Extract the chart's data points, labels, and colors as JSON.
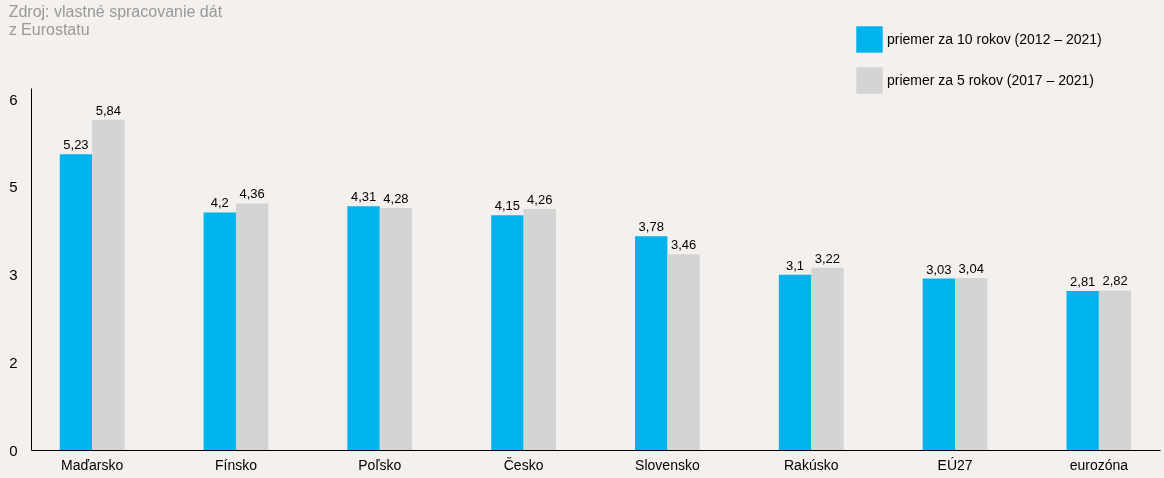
{
  "chart_data": {
    "type": "bar",
    "annotations": [
      "Zdroj: vlastné spracovanie dát\nz Eurostatu"
    ],
    "categories": [
      "Maďarsko",
      "Fínsko",
      "Poľsko",
      "Česko",
      "Slovensko",
      "Rakúsko",
      "EÚ27",
      "eurozóna"
    ],
    "series": [
      {
        "name": "priemer za 10 rokov (2012 – 2021)",
        "color": "#00b3ec",
        "values": [
          5.23,
          4.2,
          4.31,
          4.15,
          3.78,
          3.1,
          3.03,
          2.81
        ]
      },
      {
        "name": "priemer za 5 rokov (2017 – 2021)",
        "color": "#d4d4d4",
        "values": [
          5.84,
          4.36,
          4.28,
          4.26,
          3.46,
          3.22,
          3.04,
          2.82
        ]
      }
    ],
    "ylim": [
      0,
      6.4
    ],
    "yticks": [
      0,
      {
        "value": 1.55,
        "label": "2"
      },
      {
        "value": 3.1,
        "label": "3"
      },
      {
        "value": 4.65,
        "label": "5"
      },
      {
        "value": 6.2,
        "label": "6"
      }
    ],
    "value_labels": [
      [
        "5,23",
        "4,2",
        "4,31",
        "4,15",
        "3,78",
        "3,1",
        "3,03",
        "2,81"
      ],
      [
        "5,84",
        "4,36",
        "4,28",
        "4,26",
        "3,46",
        "3,22",
        "3,04",
        "2,82"
      ]
    ],
    "grid": false,
    "legend": "top right"
  }
}
